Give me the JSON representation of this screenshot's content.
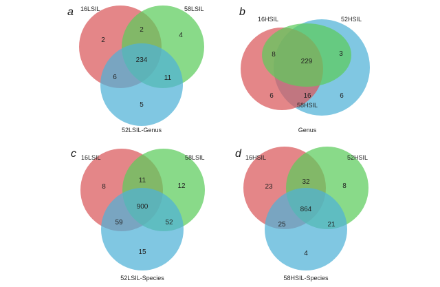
{
  "colors": {
    "red": "#d9575a",
    "green": "#5ccc5c",
    "blue": "#4fb1d7"
  },
  "panels": [
    {
      "letter": "a",
      "caption": "52LSIL-Genus",
      "sets": [
        "16LSIL",
        "58LSIL",
        ""
      ],
      "regions": {
        "r_only": "2",
        "g_only": "4",
        "b_only": "5",
        "rg": "2",
        "rb": "6",
        "gb": "11",
        "rgb": "234"
      }
    },
    {
      "letter": "b",
      "caption": "Genus",
      "sets": [
        "16HSIL",
        "52HSIL",
        "58HSIL"
      ],
      "regions": {
        "r_only": "6",
        "g_only": "3",
        "b_only": "6",
        "rg": "8",
        "rb": "16",
        "rgb": "229"
      }
    },
    {
      "letter": "c",
      "caption": "52LSIL-Species",
      "sets": [
        "16LSIL",
        "58LSIL",
        ""
      ],
      "regions": {
        "r_only": "8",
        "g_only": "12",
        "b_only": "15",
        "rg": "11",
        "rb": "59",
        "gb": "52",
        "rgb": "900"
      }
    },
    {
      "letter": "d",
      "caption": "58HSIL-Species",
      "sets": [
        "16HSIL",
        "52HSIL",
        ""
      ],
      "regions": {
        "r_only": "23",
        "g_only": "8",
        "b_only": "4",
        "rg": "32",
        "rb": "25",
        "gb": "21",
        "rgb": "864"
      }
    }
  ]
}
